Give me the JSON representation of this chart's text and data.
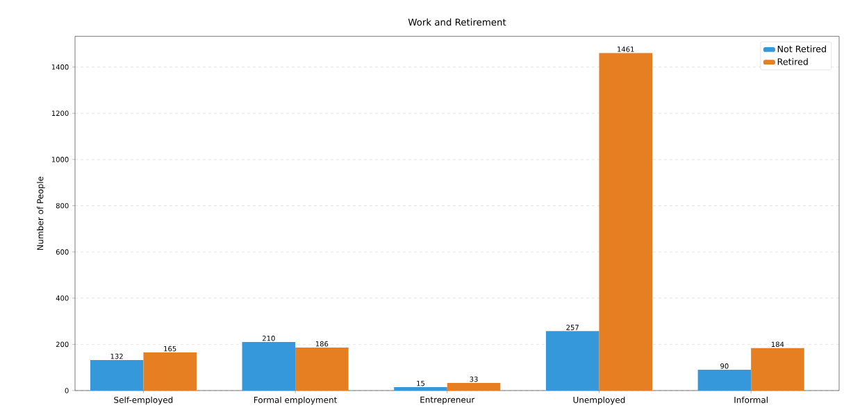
{
  "chart_data": {
    "type": "bar",
    "title": "Work and Retirement",
    "ylabel": "Number of People",
    "categories": [
      "Self-employed",
      "Formal employment",
      "Entrepreneur",
      "Unemployed",
      "Informal"
    ],
    "series": [
      {
        "name": "Not Retired",
        "color": "#3498db",
        "values": [
          132,
          210,
          15,
          257,
          90
        ]
      },
      {
        "name": "Retired",
        "color": "#e67e22",
        "values": [
          165,
          186,
          33,
          1461,
          184
        ]
      }
    ],
    "ylim": [
      0,
      1533
    ],
    "yticks": [
      0,
      200,
      400,
      600,
      800,
      1000,
      1200,
      1400
    ],
    "grid": "y",
    "legend": "top right",
    "data_labels": true
  }
}
